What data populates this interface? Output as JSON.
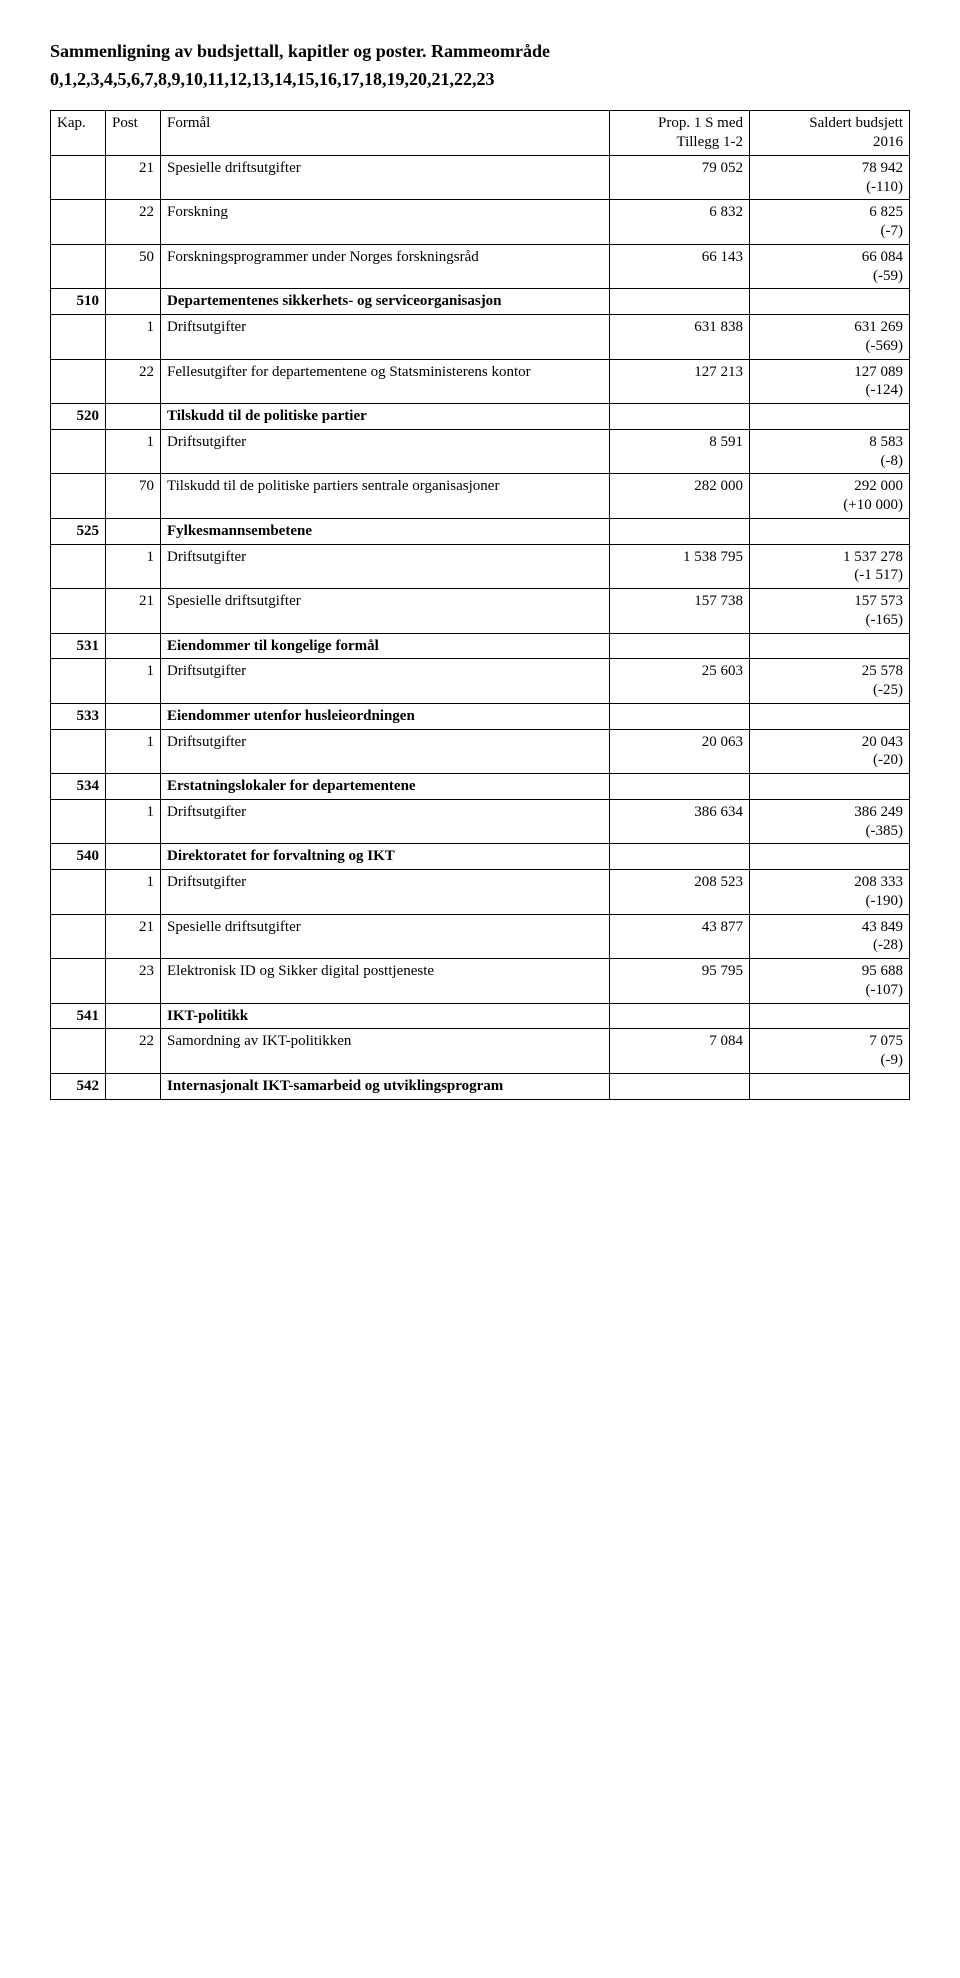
{
  "title": "Sammenligning av budsjettall, kapitler og poster. Rammeområde",
  "subtitle": "0,1,2,3,4,5,6,7,8,9,10,11,12,13,14,15,16,17,18,19,20,21,22,23",
  "headers": {
    "kap": "Kap.",
    "post": "Post",
    "formal": "Formål",
    "prop_line1": "Prop. 1 S med",
    "prop_line2": "Tillegg 1-2",
    "saldert_line1": "Saldert budsjett",
    "saldert_line2": "2016"
  },
  "rows": [
    {
      "kap": "",
      "post": "21",
      "formal": "Spesielle driftsutgifter",
      "bold": false,
      "prop": "79 052",
      "saldert": "78 942\n(-110)"
    },
    {
      "kap": "",
      "post": "22",
      "formal": "Forskning",
      "bold": false,
      "prop": "6 832",
      "saldert": "6 825\n(-7)"
    },
    {
      "kap": "",
      "post": "50",
      "formal": "Forskningsprogrammer under Norges forskningsråd",
      "bold": false,
      "prop": "66 143",
      "saldert": "66 084\n(-59)"
    },
    {
      "kap": "510",
      "post": "",
      "formal": "Departementenes sikkerhets- og serviceorganisasjon",
      "bold": true,
      "prop": "",
      "saldert": ""
    },
    {
      "kap": "",
      "post": "1",
      "formal": "Driftsutgifter",
      "bold": false,
      "prop": "631 838",
      "saldert": "631 269\n(-569)"
    },
    {
      "kap": "",
      "post": "22",
      "formal": "Fellesutgifter for departementene og Statsministerens kontor",
      "bold": false,
      "prop": "127 213",
      "saldert": "127 089\n(-124)"
    },
    {
      "kap": "520",
      "post": "",
      "formal": "Tilskudd til de politiske partier",
      "bold": true,
      "prop": "",
      "saldert": ""
    },
    {
      "kap": "",
      "post": "1",
      "formal": "Driftsutgifter",
      "bold": false,
      "prop": "8 591",
      "saldert": "8 583\n(-8)"
    },
    {
      "kap": "",
      "post": "70",
      "formal": "Tilskudd til de politiske partiers sentrale organisasjoner",
      "bold": false,
      "prop": "282 000",
      "saldert": "292 000\n(+10 000)"
    },
    {
      "kap": "525",
      "post": "",
      "formal": "Fylkesmannsembetene",
      "bold": true,
      "prop": "",
      "saldert": ""
    },
    {
      "kap": "",
      "post": "1",
      "formal": "Driftsutgifter",
      "bold": false,
      "prop": "1 538 795",
      "saldert": "1 537 278\n(-1 517)"
    },
    {
      "kap": "",
      "post": "21",
      "formal": "Spesielle driftsutgifter",
      "bold": false,
      "prop": "157 738",
      "saldert": "157 573\n(-165)"
    },
    {
      "kap": "531",
      "post": "",
      "formal": "Eiendommer til kongelige formål",
      "bold": true,
      "prop": "",
      "saldert": ""
    },
    {
      "kap": "",
      "post": "1",
      "formal": "Driftsutgifter",
      "bold": false,
      "prop": "25 603",
      "saldert": "25 578\n(-25)"
    },
    {
      "kap": "533",
      "post": "",
      "formal": "Eiendommer utenfor husleieordningen",
      "bold": true,
      "prop": "",
      "saldert": ""
    },
    {
      "kap": "",
      "post": "1",
      "formal": "Driftsutgifter",
      "bold": false,
      "prop": "20 063",
      "saldert": "20 043\n(-20)"
    },
    {
      "kap": "534",
      "post": "",
      "formal": "Erstatningslokaler for departementene",
      "bold": true,
      "prop": "",
      "saldert": ""
    },
    {
      "kap": "",
      "post": "1",
      "formal": "Driftsutgifter",
      "bold": false,
      "prop": "386 634",
      "saldert": "386 249\n(-385)"
    },
    {
      "kap": "540",
      "post": "",
      "formal": "Direktoratet for forvaltning og IKT",
      "bold": true,
      "prop": "",
      "saldert": ""
    },
    {
      "kap": "",
      "post": "1",
      "formal": "Driftsutgifter",
      "bold": false,
      "prop": "208 523",
      "saldert": "208 333\n(-190)"
    },
    {
      "kap": "",
      "post": "21",
      "formal": "Spesielle driftsutgifter",
      "bold": false,
      "prop": "43 877",
      "saldert": "43 849\n(-28)"
    },
    {
      "kap": "",
      "post": "23",
      "formal": "Elektronisk ID og Sikker digital posttjeneste",
      "bold": false,
      "prop": "95 795",
      "saldert": "95 688\n(-107)"
    },
    {
      "kap": "541",
      "post": "",
      "formal": "IKT-politikk",
      "bold": true,
      "prop": "",
      "saldert": ""
    },
    {
      "kap": "",
      "post": "22",
      "formal": "Samordning av IKT-politikken",
      "bold": false,
      "prop": "7 084",
      "saldert": "7 075\n(-9)"
    },
    {
      "kap": "542",
      "post": "",
      "formal": "Internasjonalt IKT-samarbeid og utviklingsprogram",
      "bold": true,
      "prop": "",
      "saldert": ""
    }
  ]
}
